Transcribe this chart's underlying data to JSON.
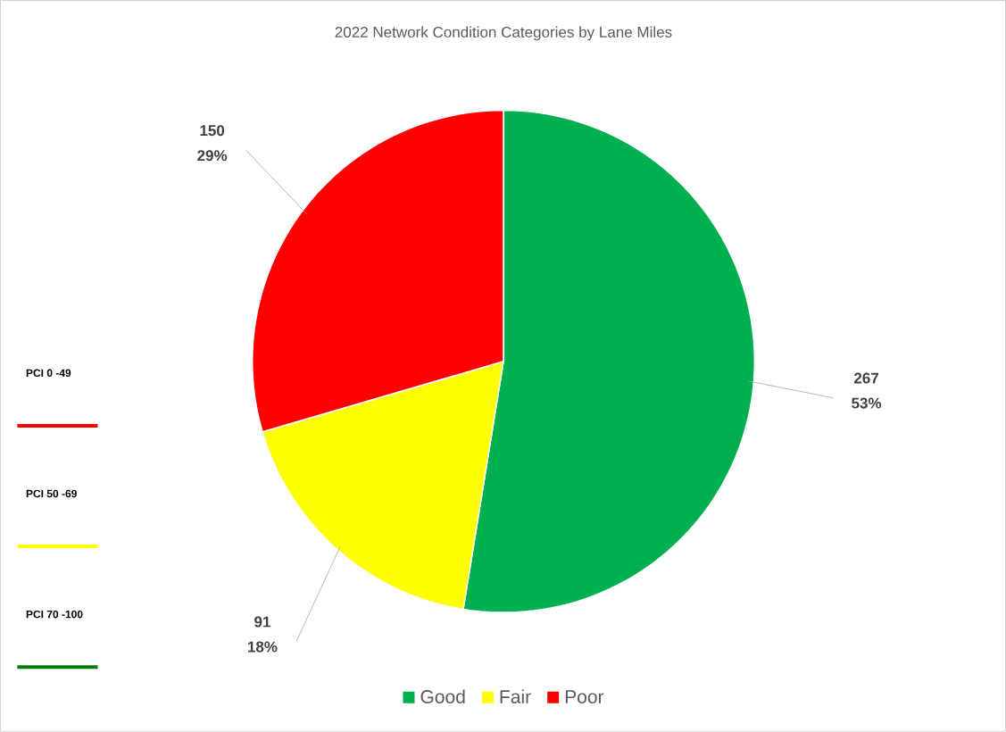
{
  "chart_data": {
    "type": "pie",
    "title": "2022 Network Condition Categories by Lane Miles",
    "categories": [
      "Good",
      "Fair",
      "Poor"
    ],
    "values": [
      267,
      91,
      150
    ],
    "colors": [
      "#00b050",
      "#ffff00",
      "#ff0000"
    ],
    "data_labels": true,
    "value_labels": [
      "267",
      "91",
      "150"
    ],
    "legend": "bottom",
    "annotations": [
      {
        "text": "53%",
        "x": "Good"
      },
      {
        "text": "18%",
        "x": "Fair"
      },
      {
        "text": "29%",
        "x": "Poor"
      },
      "PCI 0 -49",
      "PCI 50 -69",
      "PCI 70 -100"
    ]
  }
}
